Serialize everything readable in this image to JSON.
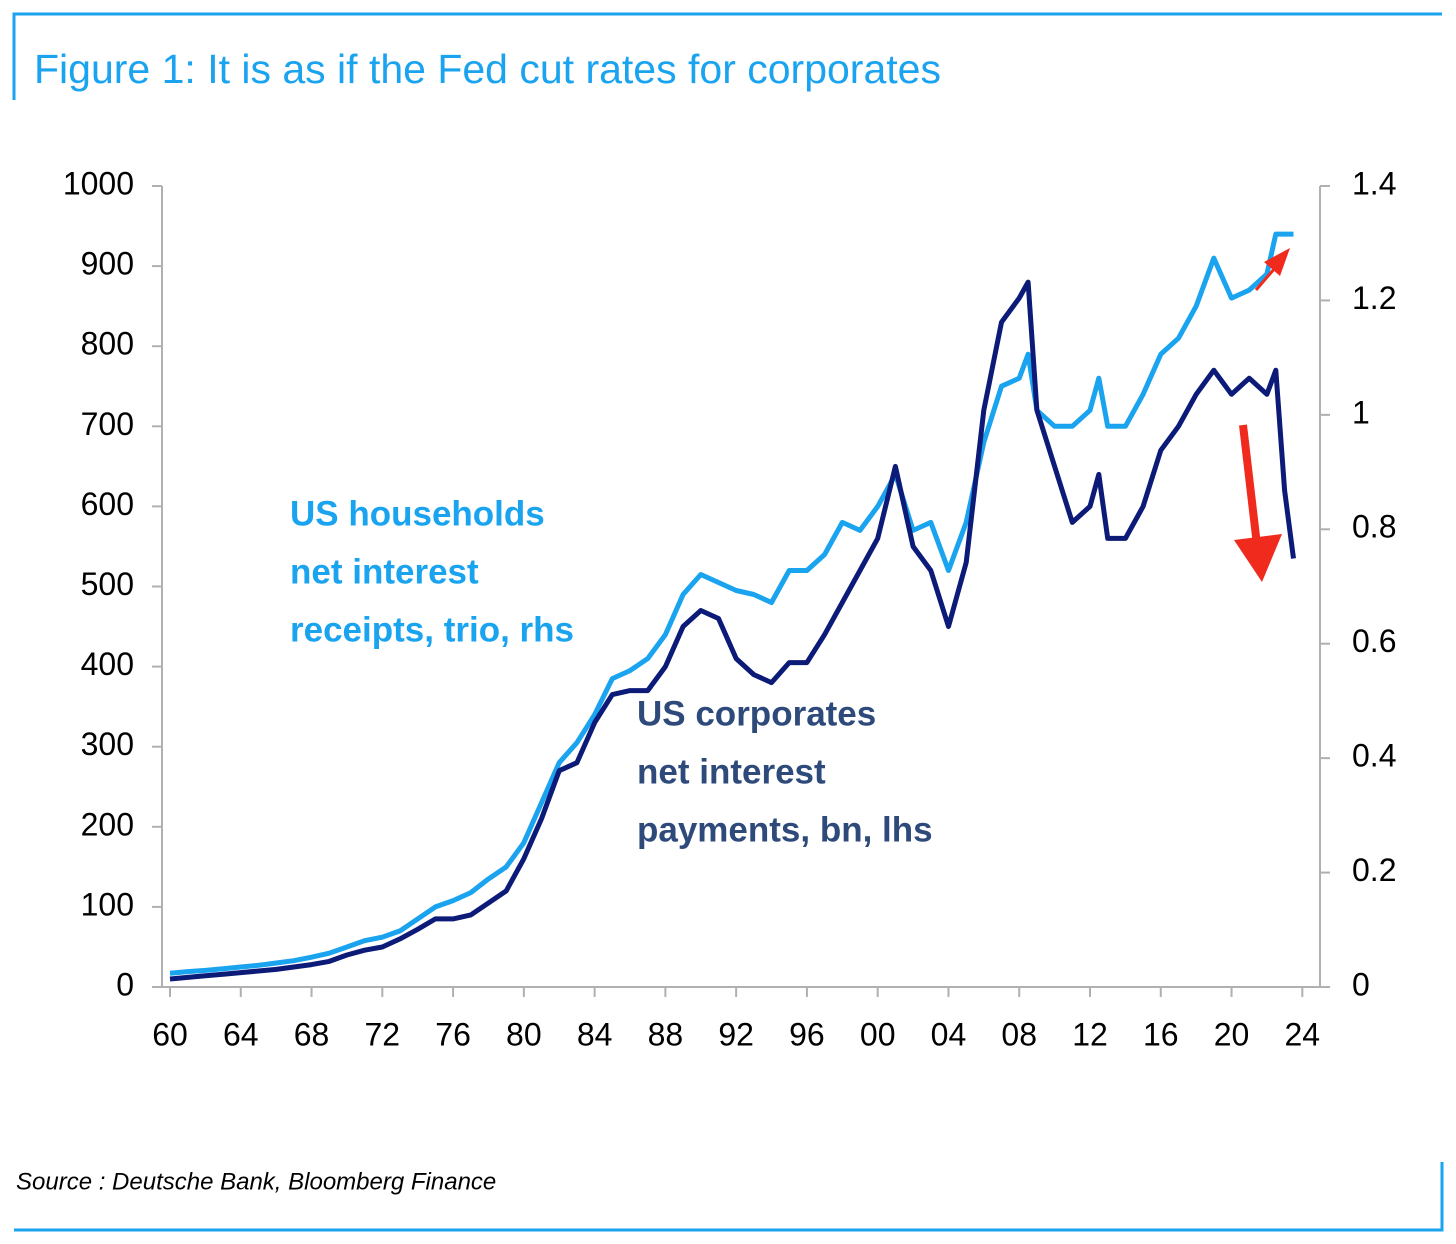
{
  "chart_data": {
    "type": "line",
    "title": "Figure 1: It is as if the Fed cut rates for corporates",
    "source": "Source : Deutsche Bank, Bloomberg Finance",
    "annotations": [
      {
        "lines": [
          "US households",
          "net interest",
          "receipts, trio, rhs"
        ],
        "color": "#1aa3ef"
      },
      {
        "lines": [
          "US corporates",
          "net interest",
          "payments, bn, lhs"
        ],
        "color": "#2e4a7a"
      }
    ],
    "x": [
      1960,
      1961,
      1962,
      1963,
      1964,
      1965,
      1966,
      1967,
      1968,
      1969,
      1970,
      1971,
      1972,
      1973,
      1974,
      1975,
      1976,
      1977,
      1978,
      1979,
      1980,
      1981,
      1982,
      1983,
      1984,
      1985,
      1986,
      1987,
      1988,
      1989,
      1990,
      1991,
      1992,
      1993,
      1994,
      1995,
      1996,
      1997,
      1998,
      1999,
      2000,
      2001,
      2002,
      2003,
      2004,
      2005,
      2006,
      2007,
      2008,
      2008.5,
      2009,
      2010,
      2011,
      2012,
      2012.5,
      2013,
      2014,
      2015,
      2016,
      2017,
      2018,
      2019,
      2020,
      2021,
      2022,
      2022.5,
      2023,
      2023.5
    ],
    "series": [
      {
        "name": "US corporates net interest payments, bn, lhs",
        "color": "#0c1a78",
        "axis": "y",
        "values": [
          10,
          12,
          14,
          16,
          18,
          20,
          22,
          25,
          28,
          32,
          40,
          46,
          50,
          60,
          72,
          85,
          85,
          90,
          105,
          120,
          160,
          210,
          270,
          280,
          330,
          365,
          370,
          370,
          400,
          450,
          470,
          460,
          410,
          390,
          380,
          405,
          405,
          440,
          480,
          520,
          560,
          650,
          550,
          520,
          450,
          530,
          720,
          830,
          860,
          880,
          720,
          650,
          580,
          600,
          640,
          560,
          560,
          600,
          670,
          700,
          740,
          770,
          740,
          760,
          740,
          770,
          620,
          535
        ]
      },
      {
        "name": "US households net interest receipts, trio, rhs",
        "color": "#1aa3ef",
        "axis": "y2",
        "values": [
          0.024,
          0.027,
          0.029,
          0.032,
          0.035,
          0.038,
          0.042,
          0.046,
          0.052,
          0.059,
          0.07,
          0.081,
          0.087,
          0.098,
          0.119,
          0.14,
          0.151,
          0.165,
          0.189,
          0.21,
          0.252,
          0.322,
          0.392,
          0.427,
          0.476,
          0.539,
          0.553,
          0.574,
          0.616,
          0.686,
          0.721,
          0.707,
          0.693,
          0.686,
          0.672,
          0.728,
          0.728,
          0.756,
          0.812,
          0.798,
          0.84,
          0.896,
          0.798,
          0.812,
          0.728,
          0.812,
          0.952,
          1.05,
          1.064,
          1.106,
          1.008,
          0.98,
          0.98,
          1.008,
          1.064,
          0.98,
          0.98,
          1.036,
          1.106,
          1.134,
          1.19,
          1.274,
          1.204,
          1.218,
          1.246,
          1.316,
          1.316,
          1.316
        ]
      }
    ],
    "xlim": [
      1960,
      2025
    ],
    "xticks": [
      {
        "value": 1960,
        "label": "60"
      },
      {
        "value": 1964,
        "label": "64"
      },
      {
        "value": 1968,
        "label": "68"
      },
      {
        "value": 1972,
        "label": "72"
      },
      {
        "value": 1976,
        "label": "76"
      },
      {
        "value": 1980,
        "label": "80"
      },
      {
        "value": 1984,
        "label": "84"
      },
      {
        "value": 1988,
        "label": "88"
      },
      {
        "value": 1992,
        "label": "92"
      },
      {
        "value": 1996,
        "label": "96"
      },
      {
        "value": 2000,
        "label": "00"
      },
      {
        "value": 2004,
        "label": "04"
      },
      {
        "value": 2008,
        "label": "08"
      },
      {
        "value": 2012,
        "label": "12"
      },
      {
        "value": 2016,
        "label": "16"
      },
      {
        "value": 2020,
        "label": "20"
      },
      {
        "value": 2024,
        "label": "24"
      }
    ],
    "ylim": [
      0,
      1000
    ],
    "yticks": [
      0,
      100,
      200,
      300,
      400,
      500,
      600,
      700,
      800,
      900,
      1000
    ],
    "y2lim": [
      0,
      1.4
    ],
    "y2ticks": [
      0,
      0.2,
      0.4,
      0.6,
      0.8,
      1,
      1.2,
      1.4
    ]
  }
}
